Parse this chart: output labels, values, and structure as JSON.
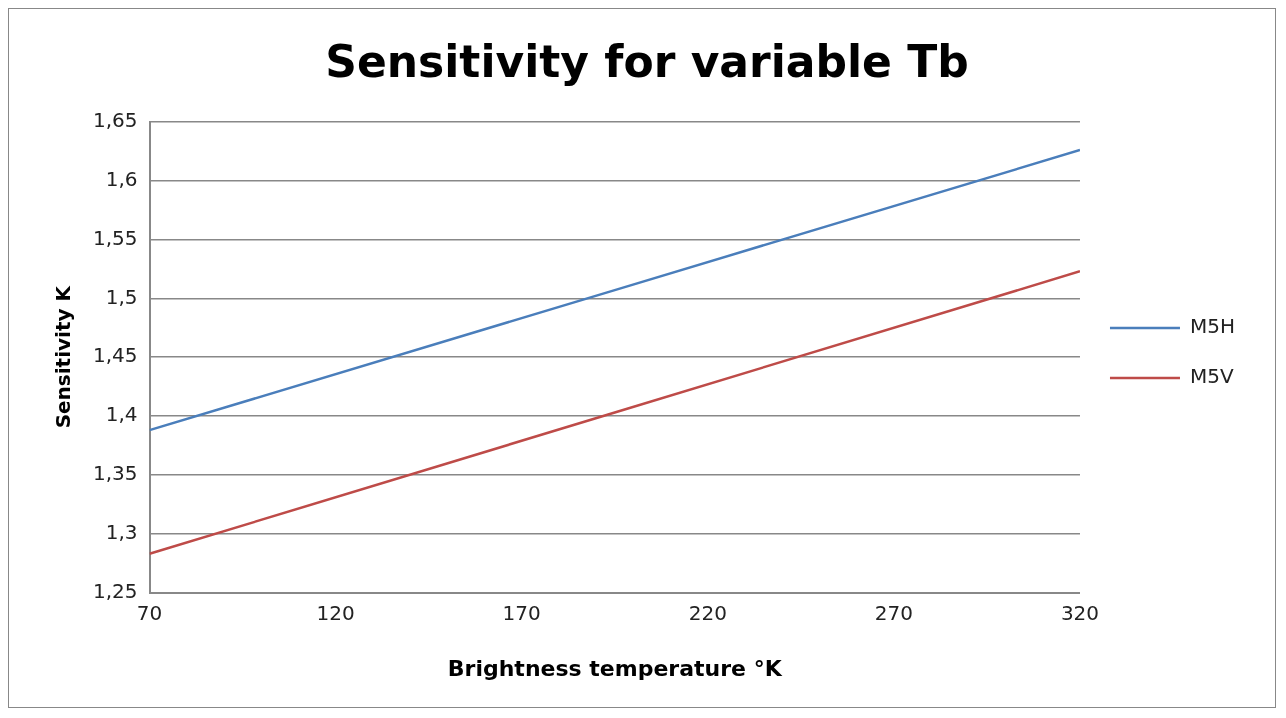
{
  "chart_data": {
    "type": "line",
    "title": "Sensitivity for variable Tb",
    "xlabel": "Brightness temperature °K",
    "ylabel": "Sensitivity K",
    "x": [
      70,
      195,
      320
    ],
    "series": [
      {
        "name": "M5H",
        "color": "#4a7ebb",
        "values": [
          1.388,
          1.507,
          1.626
        ]
      },
      {
        "name": "M5V",
        "color": "#be4b48",
        "values": [
          1.283,
          1.403,
          1.523
        ]
      }
    ],
    "xlim": [
      70,
      320
    ],
    "xticks": [
      70,
      120,
      170,
      220,
      270,
      320
    ],
    "ylim": [
      1.25,
      1.65
    ],
    "yticks": [
      {
        "value": 1.25,
        "label": "1,25"
      },
      {
        "value": 1.3,
        "label": "1,3"
      },
      {
        "value": 1.35,
        "label": "1,35"
      },
      {
        "value": 1.4,
        "label": "1,4"
      },
      {
        "value": 1.45,
        "label": "1,45"
      },
      {
        "value": 1.5,
        "label": "1,5"
      },
      {
        "value": 1.55,
        "label": "1,55"
      },
      {
        "value": 1.6,
        "label": "1,6"
      },
      {
        "value": 1.65,
        "label": "1,65"
      }
    ],
    "grid": "y",
    "legend": "right",
    "marker": "none",
    "line_style": "solid"
  }
}
